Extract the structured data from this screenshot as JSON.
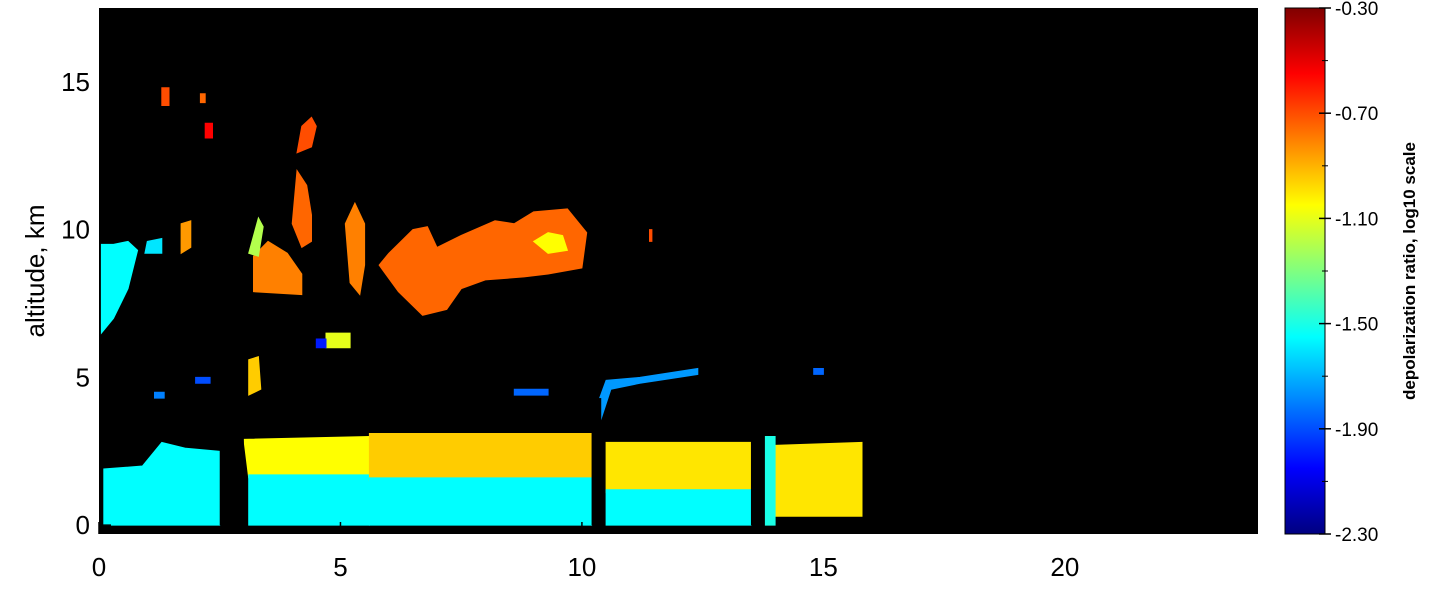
{
  "chart_data": {
    "type": "heatmap",
    "title": "",
    "ylabel": "altitude, km",
    "xlabel": "",
    "xlim": [
      0,
      24
    ],
    "ylim": [
      -0.3,
      17.5
    ],
    "x_ticks": [
      "0",
      "5",
      "10",
      "15",
      "20"
    ],
    "y_ticks": [
      "0",
      "5",
      "10",
      "15"
    ],
    "background_color": "#000000",
    "grid": false,
    "colorbar": {
      "label": "depolarization ratio, log10 scale",
      "range": [
        -2.3,
        -0.3
      ],
      "ticks": [
        "-0.30",
        "-0.70",
        "-1.10",
        "-1.50",
        "-1.90",
        "-2.30"
      ],
      "colormap": [
        "#000080",
        "#0000ff",
        "#0080ff",
        "#00ffff",
        "#80ff80",
        "#ffff00",
        "#ff8000",
        "#ff0000",
        "#800000"
      ]
    },
    "regions": [
      {
        "name": "boundary-layer-0-2.5",
        "value": -1.55,
        "polygon": [
          [
            0.1,
            0.0
          ],
          [
            0.1,
            1.9
          ],
          [
            0.9,
            2.0
          ],
          [
            1.3,
            2.8
          ],
          [
            1.8,
            2.6
          ],
          [
            2.5,
            2.5
          ],
          [
            2.5,
            0.0
          ]
        ]
      },
      {
        "name": "boundary-layer-3-5.6-top",
        "value": -1.05,
        "polygon": [
          [
            3.1,
            1.6
          ],
          [
            3.0,
            2.9
          ],
          [
            5.6,
            3.0
          ],
          [
            5.6,
            1.6
          ]
        ]
      },
      {
        "name": "boundary-layer-3-5.6-base",
        "value": -1.55,
        "polygon": [
          [
            3.1,
            0.0
          ],
          [
            3.1,
            1.7
          ],
          [
            5.6,
            1.7
          ],
          [
            5.6,
            0.0
          ]
        ]
      },
      {
        "name": "boundary-layer-5.6-10.2-top",
        "value": -0.95,
        "polygon": [
          [
            5.6,
            1.5
          ],
          [
            5.6,
            3.1
          ],
          [
            10.2,
            3.1
          ],
          [
            10.2,
            1.6
          ]
        ]
      },
      {
        "name": "boundary-layer-5.6-10.2-base",
        "value": -1.55,
        "polygon": [
          [
            5.6,
            0.0
          ],
          [
            5.6,
            1.6
          ],
          [
            10.2,
            1.6
          ],
          [
            10.2,
            0.0
          ]
        ]
      },
      {
        "name": "boundary-layer-10.4-13.5-top",
        "value": -1.0,
        "polygon": [
          [
            10.5,
            1.1
          ],
          [
            10.5,
            2.8
          ],
          [
            13.5,
            2.8
          ],
          [
            13.5,
            1.2
          ]
        ]
      },
      {
        "name": "boundary-layer-10.4-13.5-base",
        "value": -1.55,
        "polygon": [
          [
            10.5,
            0.0
          ],
          [
            10.5,
            1.2
          ],
          [
            13.5,
            1.2
          ],
          [
            13.5,
            0.0
          ]
        ]
      },
      {
        "name": "boundary-layer-13.8-15.8-top",
        "value": -1.0,
        "polygon": [
          [
            14.0,
            0.3
          ],
          [
            14.0,
            2.7
          ],
          [
            15.8,
            2.8
          ],
          [
            15.8,
            0.3
          ]
        ]
      },
      {
        "name": "boundary-layer-13.8-15.8-base",
        "value": -1.5,
        "polygon": [
          [
            13.8,
            0.0
          ],
          [
            13.8,
            3.0
          ],
          [
            14.0,
            3.0
          ],
          [
            14.0,
            0.0
          ]
        ]
      },
      {
        "name": "rising-layer-10.4",
        "value": -1.75,
        "polygon": [
          [
            10.3,
            4.0
          ],
          [
            10.5,
            4.9
          ],
          [
            11.2,
            5.0
          ],
          [
            12.4,
            5.3
          ],
          [
            12.4,
            5.1
          ],
          [
            11.2,
            4.8
          ],
          [
            10.6,
            4.6
          ],
          [
            10.4,
            3.6
          ]
        ]
      },
      {
        "name": "cirrus-main",
        "value": -0.75,
        "polygon": [
          [
            5.8,
            8.8
          ],
          [
            6.2,
            7.9
          ],
          [
            6.7,
            7.1
          ],
          [
            7.2,
            7.3
          ],
          [
            7.5,
            8.0
          ],
          [
            8.0,
            8.3
          ],
          [
            8.8,
            8.4
          ],
          [
            9.3,
            8.5
          ],
          [
            10.0,
            8.7
          ],
          [
            10.1,
            9.9
          ],
          [
            9.7,
            10.7
          ],
          [
            9.0,
            10.6
          ],
          [
            8.6,
            10.2
          ],
          [
            8.2,
            10.3
          ],
          [
            7.5,
            9.8
          ],
          [
            7.0,
            9.4
          ],
          [
            6.8,
            10.1
          ],
          [
            6.5,
            10.0
          ],
          [
            6.0,
            9.2
          ]
        ]
      },
      {
        "name": "cirrus-main-core",
        "value": -1.05,
        "polygon": [
          [
            9.0,
            9.6
          ],
          [
            9.3,
            9.2
          ],
          [
            9.7,
            9.3
          ],
          [
            9.6,
            9.8
          ],
          [
            9.3,
            9.9
          ]
        ]
      },
      {
        "name": "cirrus-3.2",
        "value": -0.8,
        "polygon": [
          [
            3.2,
            7.9
          ],
          [
            3.2,
            9.1
          ],
          [
            3.5,
            9.6
          ],
          [
            3.9,
            9.2
          ],
          [
            4.2,
            8.5
          ],
          [
            4.2,
            7.8
          ]
        ]
      },
      {
        "name": "cirrus-3.2-edge",
        "value": -1.2,
        "polygon": [
          [
            3.1,
            9.2
          ],
          [
            3.3,
            10.4
          ],
          [
            3.4,
            10.1
          ],
          [
            3.3,
            9.1
          ]
        ]
      },
      {
        "name": "cirrus-4.2-column",
        "value": -0.75,
        "polygon": [
          [
            4.0,
            10.2
          ],
          [
            4.1,
            12.0
          ],
          [
            4.3,
            11.5
          ],
          [
            4.4,
            10.5
          ],
          [
            4.4,
            9.6
          ],
          [
            4.2,
            9.4
          ]
        ]
      },
      {
        "name": "cirrus-4.2-top",
        "value": -0.7,
        "polygon": [
          [
            4.1,
            12.6
          ],
          [
            4.2,
            13.5
          ],
          [
            4.4,
            13.8
          ],
          [
            4.5,
            13.5
          ],
          [
            4.4,
            12.8
          ]
        ]
      },
      {
        "name": "cirrus-5.2",
        "value": -0.8,
        "polygon": [
          [
            5.2,
            8.2
          ],
          [
            5.1,
            10.2
          ],
          [
            5.3,
            10.9
          ],
          [
            5.5,
            10.2
          ],
          [
            5.5,
            8.8
          ],
          [
            5.4,
            7.8
          ]
        ]
      },
      {
        "name": "plume-left-edge",
        "value": -1.55,
        "polygon": [
          [
            0.05,
            6.5
          ],
          [
            0.05,
            9.5
          ],
          [
            0.3,
            9.5
          ],
          [
            0.6,
            9.6
          ],
          [
            0.8,
            9.3
          ],
          [
            0.6,
            8.0
          ],
          [
            0.3,
            7.0
          ]
        ]
      },
      {
        "name": "plume-1.3",
        "value": -1.6,
        "polygon": [
          [
            0.95,
            9.2
          ],
          [
            1.0,
            9.6
          ],
          [
            1.3,
            9.7
          ],
          [
            1.3,
            9.2
          ]
        ]
      },
      {
        "name": "small-cloud-1.7",
        "value": -0.85,
        "polygon": [
          [
            1.7,
            9.2
          ],
          [
            1.7,
            10.2
          ],
          [
            1.9,
            10.3
          ],
          [
            1.9,
            9.4
          ]
        ]
      },
      {
        "name": "high-patch-1.3",
        "value": -0.7,
        "polygon": [
          [
            1.3,
            14.2
          ],
          [
            1.3,
            14.8
          ],
          [
            1.45,
            14.8
          ],
          [
            1.45,
            14.2
          ]
        ]
      },
      {
        "name": "high-patch-2.1",
        "value": -0.75,
        "polygon": [
          [
            2.1,
            14.3
          ],
          [
            2.1,
            14.6
          ],
          [
            2.2,
            14.6
          ],
          [
            2.2,
            14.3
          ]
        ]
      },
      {
        "name": "high-patch-2.3",
        "value": -0.55,
        "polygon": [
          [
            2.2,
            13.1
          ],
          [
            2.2,
            13.6
          ],
          [
            2.35,
            13.6
          ],
          [
            2.35,
            13.1
          ]
        ]
      },
      {
        "name": "midlevel-5.0",
        "value": -1.1,
        "polygon": [
          [
            4.7,
            6.0
          ],
          [
            4.7,
            6.5
          ],
          [
            5.2,
            6.5
          ],
          [
            5.2,
            6.0
          ]
        ]
      },
      {
        "name": "midlevel-4.5",
        "value": -2.0,
        "polygon": [
          [
            4.5,
            6.0
          ],
          [
            4.5,
            6.3
          ],
          [
            4.7,
            6.3
          ],
          [
            4.7,
            6.0
          ]
        ]
      },
      {
        "name": "midlevel-3.2",
        "value": -0.95,
        "polygon": [
          [
            3.1,
            4.4
          ],
          [
            3.1,
            5.6
          ],
          [
            3.3,
            5.7
          ],
          [
            3.35,
            4.6
          ]
        ]
      },
      {
        "name": "speck-11.4",
        "value": -0.7,
        "polygon": [
          [
            11.4,
            9.6
          ],
          [
            11.4,
            10.0
          ],
          [
            11.45,
            10.0
          ],
          [
            11.45,
            9.6
          ]
        ]
      },
      {
        "name": "aerosol-14.8",
        "value": -1.85,
        "polygon": [
          [
            14.8,
            5.1
          ],
          [
            14.8,
            5.3
          ],
          [
            15.0,
            5.3
          ],
          [
            15.0,
            5.1
          ]
        ]
      },
      {
        "name": "aerosol-2.1",
        "value": -1.9,
        "polygon": [
          [
            2.0,
            4.8
          ],
          [
            2.0,
            5.0
          ],
          [
            2.3,
            5.0
          ],
          [
            2.3,
            4.8
          ]
        ]
      },
      {
        "name": "aerosol-1.2",
        "value": -1.8,
        "polygon": [
          [
            1.15,
            4.3
          ],
          [
            1.15,
            4.5
          ],
          [
            1.35,
            4.5
          ],
          [
            1.35,
            4.3
          ]
        ]
      },
      {
        "name": "aerosol-9.0",
        "value": -1.85,
        "polygon": [
          [
            8.6,
            4.4
          ],
          [
            8.6,
            4.6
          ],
          [
            9.3,
            4.6
          ],
          [
            9.3,
            4.4
          ]
        ]
      }
    ],
    "gaps": [
      {
        "x0": 2.5,
        "x1": 3.0,
        "y0": 0.0,
        "y1": 3.6
      },
      {
        "x0": 10.2,
        "x1": 10.4,
        "y0": 0.0,
        "y1": 4.3
      },
      {
        "x0": 13.5,
        "x1": 13.75,
        "y0": 0.0,
        "y1": 3.0
      }
    ]
  }
}
